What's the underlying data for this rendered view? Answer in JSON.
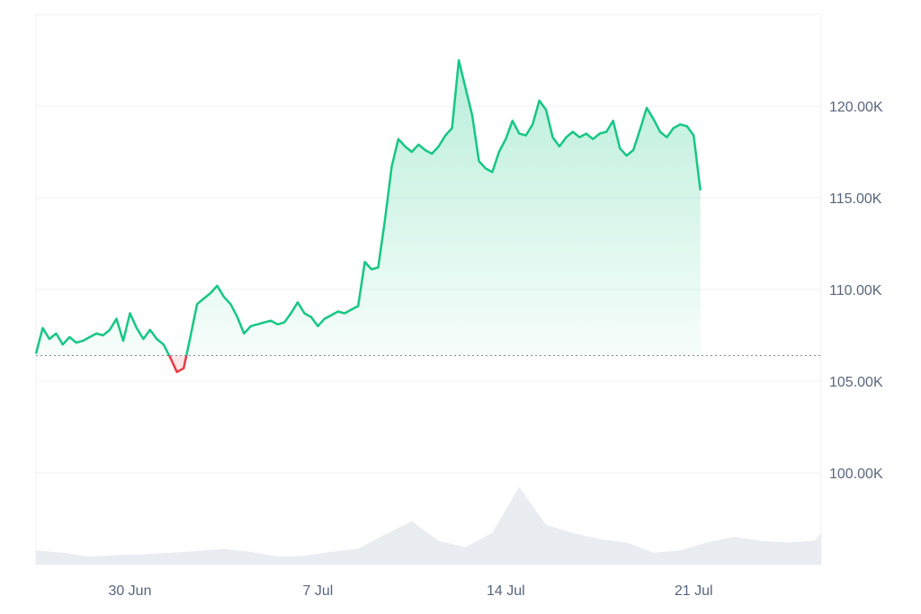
{
  "chart_data": {
    "type": "area",
    "title": "",
    "xlabel": "",
    "ylabel": "",
    "ylim": [
      95000,
      125000
    ],
    "y_ticks": [
      100000,
      105000,
      110000,
      115000,
      120000
    ],
    "y_tick_labels": [
      "100.00K",
      "105.00K",
      "110.00K",
      "115.00K",
      "120.00K"
    ],
    "x_ticks": [
      {
        "date": "2025-06-30",
        "label": "30 Jun"
      },
      {
        "date": "2025-07-07",
        "label": "7 Jul"
      },
      {
        "date": "2025-07-14",
        "label": "14 Jul"
      },
      {
        "date": "2025-07-21",
        "label": "21 Jul"
      }
    ],
    "x_range": [
      "2025-06-26T12:00",
      "2025-07-25T18:00"
    ],
    "baseline": 106400,
    "grid": true,
    "legend": "none",
    "colors": {
      "up": "#16c784",
      "down": "#ea3943",
      "volume": "#e9ecf1",
      "grid": "#eff2f5",
      "baseline": "#808a9d"
    },
    "series": [
      {
        "values": [
          [
            "2025-06-26T12:00",
            106500
          ],
          [
            "2025-06-26T18:00",
            107900
          ],
          [
            "2025-06-27T00:00",
            107300
          ],
          [
            "2025-06-27T06:00",
            107600
          ],
          [
            "2025-06-27T12:00",
            107000
          ],
          [
            "2025-06-27T18:00",
            107400
          ],
          [
            "2025-06-28T00:00",
            107100
          ],
          [
            "2025-06-28T06:00",
            107200
          ],
          [
            "2025-06-28T12:00",
            107400
          ],
          [
            "2025-06-28T18:00",
            107600
          ],
          [
            "2025-06-29T00:00",
            107500
          ],
          [
            "2025-06-29T06:00",
            107800
          ],
          [
            "2025-06-29T12:00",
            108400
          ],
          [
            "2025-06-29T18:00",
            107200
          ],
          [
            "2025-06-30T00:00",
            108700
          ],
          [
            "2025-06-30T06:00",
            107900
          ],
          [
            "2025-06-30T12:00",
            107300
          ],
          [
            "2025-06-30T18:00",
            107800
          ],
          [
            "2025-07-01T00:00",
            107300
          ],
          [
            "2025-07-01T06:00",
            107000
          ],
          [
            "2025-07-01T12:00",
            106300
          ],
          [
            "2025-07-01T18:00",
            105500
          ],
          [
            "2025-07-02T00:00",
            105700
          ],
          [
            "2025-07-02T06:00",
            107400
          ],
          [
            "2025-07-02T12:00",
            109200
          ],
          [
            "2025-07-02T18:00",
            109500
          ],
          [
            "2025-07-03T00:00",
            109800
          ],
          [
            "2025-07-03T06:00",
            110200
          ],
          [
            "2025-07-03T12:00",
            109600
          ],
          [
            "2025-07-03T18:00",
            109200
          ],
          [
            "2025-07-04T00:00",
            108500
          ],
          [
            "2025-07-04T06:00",
            107600
          ],
          [
            "2025-07-04T12:00",
            108000
          ],
          [
            "2025-07-04T18:00",
            108100
          ],
          [
            "2025-07-05T00:00",
            108200
          ],
          [
            "2025-07-05T06:00",
            108300
          ],
          [
            "2025-07-05T12:00",
            108100
          ],
          [
            "2025-07-05T18:00",
            108200
          ],
          [
            "2025-07-06T00:00",
            108700
          ],
          [
            "2025-07-06T06:00",
            109300
          ],
          [
            "2025-07-06T12:00",
            108700
          ],
          [
            "2025-07-06T18:00",
            108500
          ],
          [
            "2025-07-07T00:00",
            108000
          ],
          [
            "2025-07-07T06:00",
            108400
          ],
          [
            "2025-07-07T12:00",
            108600
          ],
          [
            "2025-07-07T18:00",
            108800
          ],
          [
            "2025-07-08T00:00",
            108700
          ],
          [
            "2025-07-08T06:00",
            108900
          ],
          [
            "2025-07-08T12:00",
            109100
          ],
          [
            "2025-07-08T18:00",
            111500
          ],
          [
            "2025-07-09T00:00",
            111100
          ],
          [
            "2025-07-09T06:00",
            111200
          ],
          [
            "2025-07-09T12:00",
            113800
          ],
          [
            "2025-07-09T18:00",
            116700
          ],
          [
            "2025-07-10T00:00",
            118200
          ],
          [
            "2025-07-10T06:00",
            117800
          ],
          [
            "2025-07-10T12:00",
            117500
          ],
          [
            "2025-07-10T18:00",
            117900
          ],
          [
            "2025-07-11T00:00",
            117600
          ],
          [
            "2025-07-11T06:00",
            117400
          ],
          [
            "2025-07-11T12:00",
            117800
          ],
          [
            "2025-07-11T18:00",
            118400
          ],
          [
            "2025-07-12T00:00",
            118800
          ],
          [
            "2025-07-12T06:00",
            122500
          ],
          [
            "2025-07-12T12:00",
            121000
          ],
          [
            "2025-07-12T18:00",
            119500
          ],
          [
            "2025-07-13T00:00",
            117000
          ],
          [
            "2025-07-13T06:00",
            116600
          ],
          [
            "2025-07-13T12:00",
            116400
          ],
          [
            "2025-07-13T18:00",
            117500
          ],
          [
            "2025-07-14T00:00",
            118200
          ],
          [
            "2025-07-14T06:00",
            119200
          ],
          [
            "2025-07-14T12:00",
            118500
          ],
          [
            "2025-07-14T18:00",
            118400
          ],
          [
            "2025-07-15T00:00",
            119000
          ],
          [
            "2025-07-15T06:00",
            120300
          ],
          [
            "2025-07-15T12:00",
            119800
          ],
          [
            "2025-07-15T18:00",
            118300
          ],
          [
            "2025-07-16T00:00",
            117800
          ],
          [
            "2025-07-16T06:00",
            118300
          ],
          [
            "2025-07-16T12:00",
            118600
          ],
          [
            "2025-07-16T18:00",
            118300
          ],
          [
            "2025-07-17T00:00",
            118500
          ],
          [
            "2025-07-17T06:00",
            118200
          ],
          [
            "2025-07-17T12:00",
            118500
          ],
          [
            "2025-07-17T18:00",
            118600
          ],
          [
            "2025-07-18T00:00",
            119200
          ],
          [
            "2025-07-18T06:00",
            117700
          ],
          [
            "2025-07-18T12:00",
            117300
          ],
          [
            "2025-07-18T18:00",
            117600
          ],
          [
            "2025-07-19T00:00",
            118700
          ],
          [
            "2025-07-19T06:00",
            119900
          ],
          [
            "2025-07-19T12:00",
            119300
          ],
          [
            "2025-07-19T18:00",
            118600
          ],
          [
            "2025-07-20T00:00",
            118300
          ],
          [
            "2025-07-20T06:00",
            118800
          ],
          [
            "2025-07-20T12:00",
            119000
          ],
          [
            "2025-07-20T18:00",
            118900
          ],
          [
            "2025-07-21T00:00",
            118400
          ],
          [
            "2025-07-21T06:00",
            115400
          ]
        ]
      }
    ],
    "volume": [
      [
        "2025-06-26T12:00",
        0.18
      ],
      [
        "2025-06-27T12:00",
        0.15
      ],
      [
        "2025-06-28T12:00",
        0.1
      ],
      [
        "2025-06-29T12:00",
        0.12
      ],
      [
        "2025-06-30T12:00",
        0.13
      ],
      [
        "2025-07-01T12:00",
        0.15
      ],
      [
        "2025-07-02T12:00",
        0.17
      ],
      [
        "2025-07-03T12:00",
        0.2
      ],
      [
        "2025-07-04T12:00",
        0.16
      ],
      [
        "2025-07-05T12:00",
        0.1
      ],
      [
        "2025-07-06T12:00",
        0.11
      ],
      [
        "2025-07-07T12:00",
        0.16
      ],
      [
        "2025-07-08T12:00",
        0.2
      ],
      [
        "2025-07-09T12:00",
        0.38
      ],
      [
        "2025-07-10T12:00",
        0.55
      ],
      [
        "2025-07-11T12:00",
        0.3
      ],
      [
        "2025-07-12T12:00",
        0.22
      ],
      [
        "2025-07-13T12:00",
        0.4
      ],
      [
        "2025-07-14T12:00",
        0.98
      ],
      [
        "2025-07-15T12:00",
        0.5
      ],
      [
        "2025-07-16T12:00",
        0.4
      ],
      [
        "2025-07-17T12:00",
        0.32
      ],
      [
        "2025-07-18T12:00",
        0.28
      ],
      [
        "2025-07-19T12:00",
        0.15
      ],
      [
        "2025-07-20T12:00",
        0.18
      ],
      [
        "2025-07-21T12:00",
        0.28
      ],
      [
        "2025-07-22T12:00",
        0.35
      ],
      [
        "2025-07-23T12:00",
        0.3
      ],
      [
        "2025-07-24T12:00",
        0.28
      ],
      [
        "2025-07-25T12:00",
        0.3
      ],
      [
        "2025-07-25T18:00",
        0.4
      ]
    ]
  }
}
